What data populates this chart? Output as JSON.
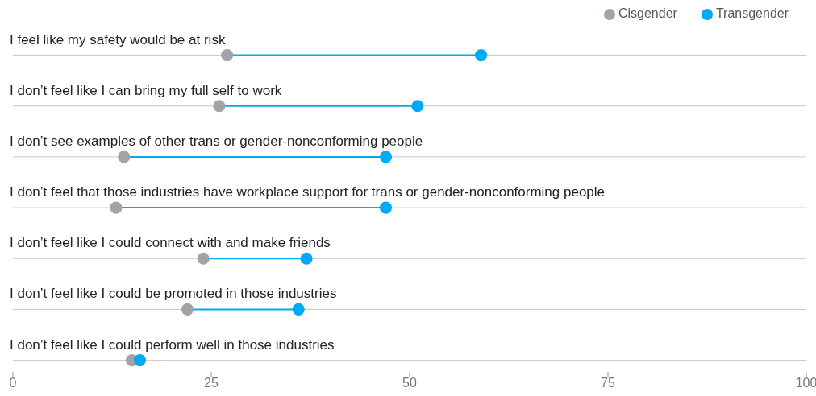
{
  "chart_data": {
    "type": "scatter",
    "categories": [
      "I feel like my safety would be at risk",
      "I don’t feel like I can bring my full self to work",
      "I don’t see examples of other trans or gender-nonconforming people",
      "I don’t feel that those industries have workplace support for trans or gender-nonconforming people",
      "I don’t feel like I could connect with and make friends",
      "I don’t feel like I could be promoted in those industries",
      "I don’t feel like I could perform well in those industries"
    ],
    "series": [
      {
        "name": "Cisgender",
        "color": "#a0a4a8",
        "values": [
          27,
          26,
          14,
          13,
          24,
          22,
          15
        ]
      },
      {
        "name": "Transgender",
        "color": "#00a9f4",
        "values": [
          59,
          51,
          47,
          47,
          37,
          36,
          16
        ]
      }
    ],
    "orientation": "horizontal",
    "xlim": [
      0,
      100
    ],
    "xticks": [
      0,
      25,
      50,
      75,
      100
    ],
    "grid": "y",
    "legend": "top right",
    "marker": "circle"
  }
}
